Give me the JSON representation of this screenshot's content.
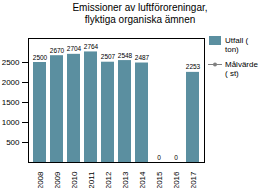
{
  "chart_data": {
    "type": "bar",
    "title": "Emissioner av luftföroreningar,\nflyktiga organiska ämnen",
    "categories": [
      "2008",
      "2009",
      "2010",
      "2011",
      "2012",
      "2013",
      "2014",
      "2015",
      "2016",
      "2017"
    ],
    "series": [
      {
        "name": "Utfall (\nton)",
        "type": "bar",
        "color": "#5b8fa0",
        "values": [
          2500,
          2670,
          2704,
          2764,
          2507,
          2548,
          2487,
          0,
          0,
          2253
        ]
      },
      {
        "name": "Målvärde\n( st)",
        "type": "line",
        "color": "gray",
        "marker": "circle",
        "values": [
          null,
          null,
          null,
          null,
          null,
          null,
          null,
          null,
          null,
          null
        ]
      }
    ],
    "data_labels": true,
    "ylim": [
      0,
      3100
    ],
    "yticks": [
      500,
      1000,
      1500,
      2000,
      2500
    ],
    "grid": false,
    "legend": "right"
  }
}
